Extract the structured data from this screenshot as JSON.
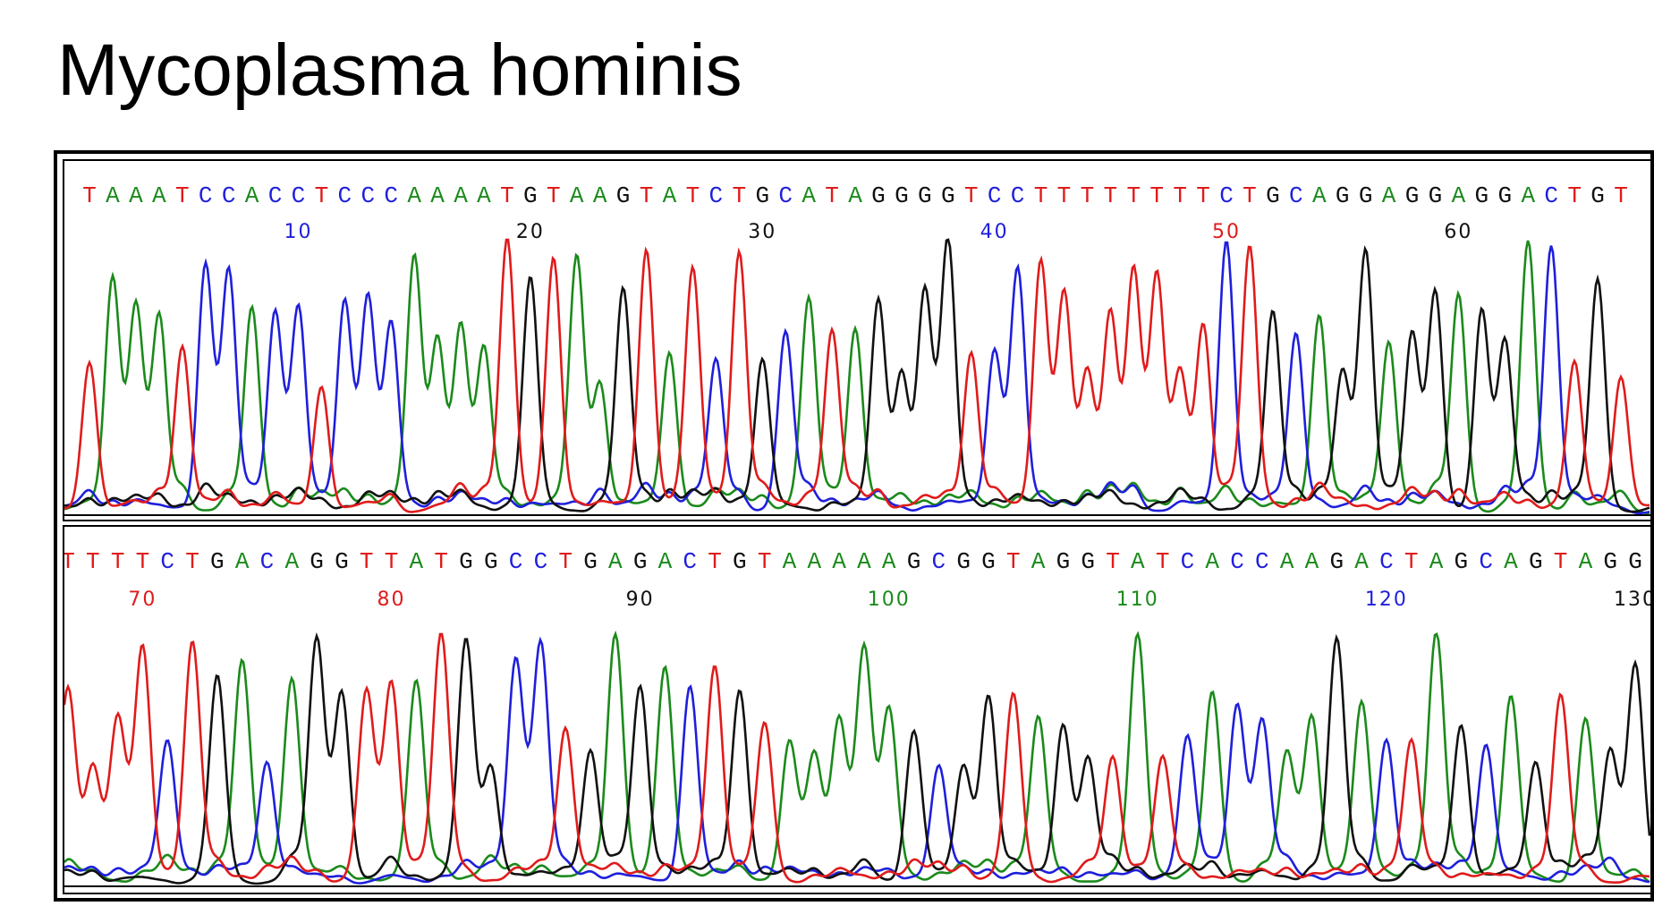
{
  "title": "Mycoplasma hominis",
  "colors": {
    "A": "#1b8a1b",
    "C": "#1f1fdc",
    "G": "#111111",
    "T": "#e01b1b"
  },
  "chart_data": [
    {
      "type": "line",
      "panel": "top",
      "sequence": "TAAATCCACCTCCCAAAATGTAAGTATCTGCATAGGGGTCCTTTTTTTTCTGCAGGAGGAGGACTGT",
      "position_labels": [
        {
          "value": "10",
          "color": "C"
        },
        {
          "value": "20",
          "color": "G"
        },
        {
          "value": "30",
          "color": "G"
        },
        {
          "value": "40",
          "color": "C"
        },
        {
          "value": "50",
          "color": "T"
        },
        {
          "value": "60",
          "color": "G"
        }
      ],
      "series": [
        {
          "base": "A",
          "color": "#1b8a1b"
        },
        {
          "base": "C",
          "color": "#1f1fdc"
        },
        {
          "base": "G",
          "color": "#111111"
        },
        {
          "base": "T",
          "color": "#e01b1b"
        }
      ]
    },
    {
      "type": "line",
      "panel": "bottom",
      "sequence": "TTTTCTGACAGGTTATGGCCTGAGACTGTAAAAAGCGGTAGGTATCACCAAGACTAGCAGTAGG",
      "position_labels": [
        {
          "value": "70",
          "color": "T"
        },
        {
          "value": "80",
          "color": "T"
        },
        {
          "value": "90",
          "color": "G"
        },
        {
          "value": "100",
          "color": "A"
        },
        {
          "value": "110",
          "color": "A"
        },
        {
          "value": "120",
          "color": "C"
        },
        {
          "value": "130",
          "color": "G"
        }
      ],
      "series": [
        {
          "base": "A",
          "color": "#1b8a1b"
        },
        {
          "base": "C",
          "color": "#1f1fdc"
        },
        {
          "base": "G",
          "color": "#111111"
        },
        {
          "base": "T",
          "color": "#e01b1b"
        }
      ]
    }
  ]
}
